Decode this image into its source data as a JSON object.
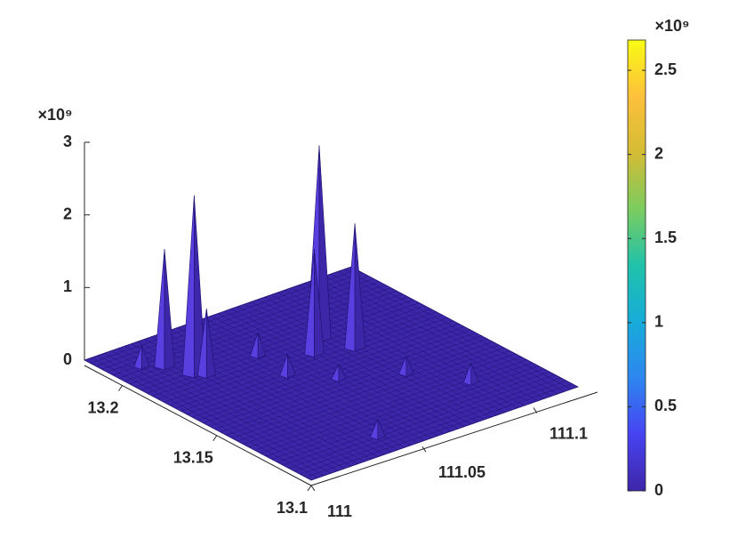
{
  "chart_data": {
    "type": "surface3d",
    "color": "#3e26a8",
    "edge_color": "#1b1270",
    "xlim": [
      111,
      111.12
    ],
    "xticks": [
      111,
      111.05,
      111.1
    ],
    "ylim": [
      13.1,
      13.22
    ],
    "yticks": [
      13.1,
      13.15,
      13.2
    ],
    "zlim": [
      0,
      3000000000
    ],
    "zticks": [
      0,
      {
        "value": 1000000000,
        "label": "1"
      },
      {
        "value": 2000000000,
        "label": "2"
      },
      {
        "value": 3000000000,
        "label": "3"
      }
    ],
    "z_multiplier": "×10⁹",
    "peaks": {
      "x": [
        111.075,
        111.066,
        111.08,
        111.05,
        111.013,
        111.019,
        111.081,
        111.048,
        111.023,
        111.026,
        111.06,
        111.094,
        111.041
      ],
      "y": [
        13.184,
        13.176,
        13.171,
        13.187,
        13.205,
        13.2,
        13.145,
        13.169,
        13.189,
        13.186,
        13.156,
        13.126,
        13.113
      ],
      "z": [
        2650000000,
        1430000000,
        1700000000,
        300000000,
        270000000,
        1600000000,
        220000000,
        270000000,
        2450000000,
        900000000,
        180000000,
        250000000,
        220000000
      ]
    },
    "colorbar": {
      "clim": [
        0,
        2680000000
      ],
      "ticks": [
        0,
        {
          "value": 500000000,
          "label": "0.5"
        },
        {
          "value": 1000000000,
          "label": "1"
        },
        {
          "value": 1500000000,
          "label": "1.5"
        },
        {
          "value": 2000000000,
          "label": "2"
        },
        {
          "value": 2500000000,
          "label": "2.5"
        }
      ],
      "multiplier": "×10⁹",
      "colors": [
        "#3e26a8",
        "#4743f2",
        "#2e86f0",
        "#17acd9",
        "#20c2aa",
        "#7bcc5f",
        "#d4bc35",
        "#fdc03b",
        "#f9fb15"
      ]
    }
  }
}
